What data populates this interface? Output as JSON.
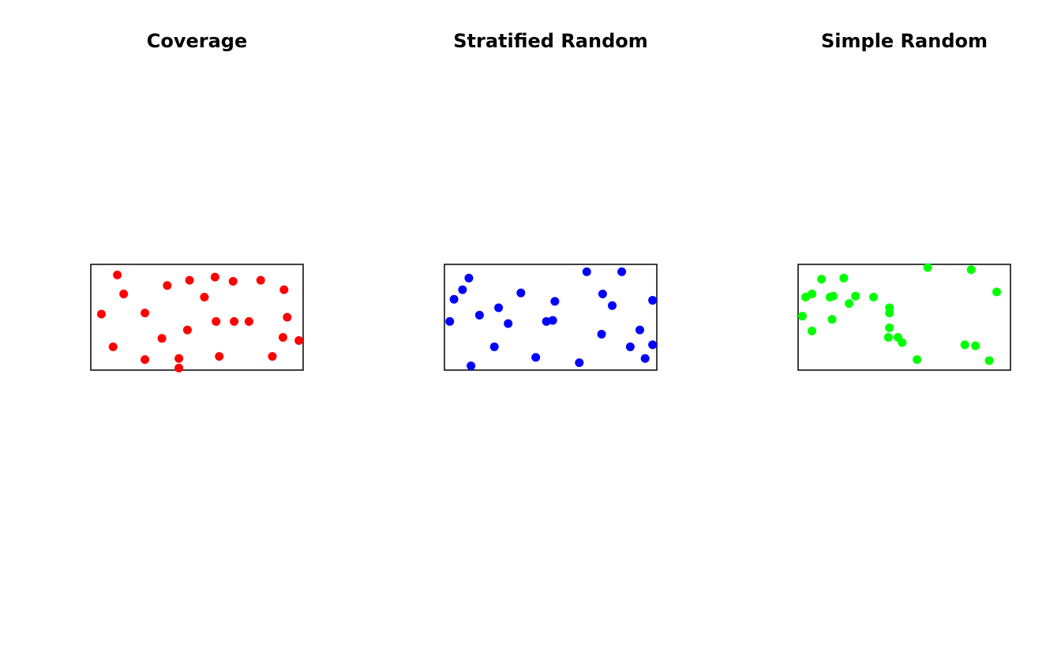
{
  "chart_data": [
    {
      "type": "scatter",
      "title": "Coverage",
      "color": "#ff0000",
      "xlim": [
        0,
        2
      ],
      "ylim": [
        0,
        1
      ],
      "x": [
        0.25,
        0.31,
        0.1,
        0.21,
        0.51,
        0.51,
        0.67,
        0.72,
        0.83,
        0.83,
        0.91,
        0.93,
        1.07,
        1.17,
        1.18,
        1.21,
        1.34,
        1.35,
        1.49,
        1.6,
        1.71,
        1.81,
        1.82,
        1.85,
        1.96
      ],
      "values": [
        0.9,
        0.72,
        0.53,
        0.22,
        0.1,
        0.54,
        0.3,
        0.8,
        0.11,
        0.02,
        0.38,
        0.85,
        0.69,
        0.88,
        0.46,
        0.13,
        0.84,
        0.46,
        0.46,
        0.85,
        0.13,
        0.31,
        0.76,
        0.5,
        0.28
      ]
    },
    {
      "type": "scatter",
      "title": "Stratified Random",
      "color": "#0000ff",
      "xlim": [
        0,
        2
      ],
      "ylim": [
        0,
        1
      ],
      "x": [
        0.23,
        0.17,
        0.09,
        0.05,
        0.25,
        0.33,
        0.47,
        0.51,
        0.6,
        0.72,
        0.86,
        0.96,
        1.02,
        1.04,
        1.27,
        1.34,
        1.48,
        1.49,
        1.58,
        1.67,
        1.75,
        1.84,
        1.89,
        1.96,
        1.96
      ],
      "values": [
        0.87,
        0.76,
        0.67,
        0.46,
        0.04,
        0.52,
        0.22,
        0.59,
        0.44,
        0.73,
        0.12,
        0.46,
        0.47,
        0.65,
        0.07,
        0.93,
        0.34,
        0.72,
        0.61,
        0.93,
        0.22,
        0.38,
        0.11,
        0.66,
        0.24
      ]
    },
    {
      "type": "scatter",
      "title": "Simple Random",
      "color": "#00ff00",
      "xlim": [
        0,
        2
      ],
      "ylim": [
        0,
        1
      ],
      "x": [
        0.04,
        0.07,
        0.13,
        0.13,
        0.22,
        0.3,
        0.33,
        0.32,
        0.43,
        0.48,
        0.54,
        0.71,
        0.86,
        0.86,
        0.86,
        0.85,
        0.94,
        0.98,
        1.12,
        1.22,
        1.57,
        1.63,
        1.67,
        1.8,
        1.87
      ],
      "values": [
        0.51,
        0.69,
        0.72,
        0.37,
        0.86,
        0.69,
        0.7,
        0.48,
        0.87,
        0.63,
        0.7,
        0.69,
        0.59,
        0.54,
        0.4,
        0.31,
        0.31,
        0.26,
        0.1,
        0.97,
        0.24,
        0.95,
        0.23,
        0.09,
        0.74
      ]
    }
  ]
}
